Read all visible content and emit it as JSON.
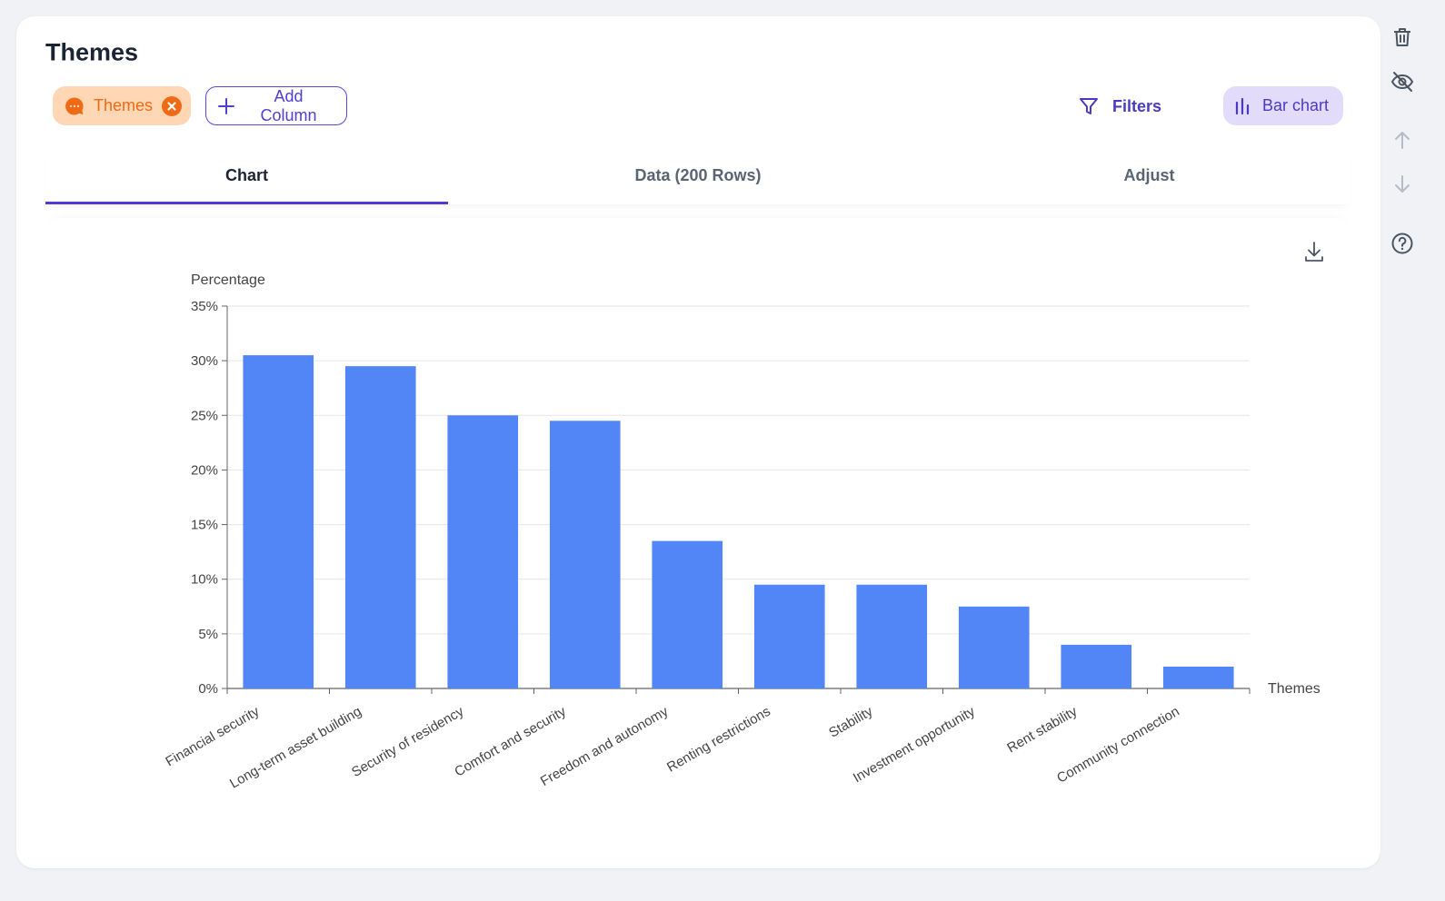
{
  "header": {
    "title": "Themes",
    "column_pill": {
      "label": "Themes",
      "icon": "chat-bubble-icon",
      "remove_icon": "close-icon"
    },
    "add_column_label": "Add Column",
    "filters_label": "Filters",
    "chart_type_label": "Bar chart"
  },
  "tabs": [
    {
      "label": "Chart",
      "active": true
    },
    {
      "label": "Data (200 Rows)",
      "active": false
    },
    {
      "label": "Adjust",
      "active": false
    }
  ],
  "side_toolbar": [
    "trash-icon",
    "eye-off-icon",
    "arrow-up-icon",
    "arrow-down-icon",
    "help-icon"
  ],
  "colors": {
    "accent": "#4f3bd3",
    "bar": "#5285f6",
    "pill_bg": "#ffd7b4",
    "pill_text": "#ef6a14"
  },
  "chart_data": {
    "type": "bar",
    "title": "",
    "ylabel": "Percentage",
    "xlabel": "Themes",
    "ylim": [
      0,
      35
    ],
    "yticks": [
      "0%",
      "5%",
      "10%",
      "15%",
      "20%",
      "25%",
      "30%",
      "35%"
    ],
    "grid": true,
    "categories": [
      "Financial security",
      "Long-term asset building",
      "Security of residency",
      "Comfort and security",
      "Freedom and autonomy",
      "Renting restrictions",
      "Stability",
      "Investment opportunity",
      "Rent stability",
      "Community connection"
    ],
    "values": [
      30.5,
      29.5,
      25.0,
      24.5,
      13.5,
      9.5,
      9.5,
      7.5,
      4.0,
      2.0
    ]
  }
}
